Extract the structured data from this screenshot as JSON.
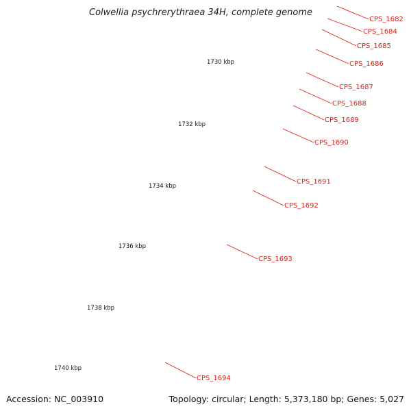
{
  "title": "Colwellia psychrerythraea 34H, complete genome",
  "accession": "Accession: NC_003910",
  "summary": "Topology: circular; Length: 5,373,180 bp; Genes: 5,027",
  "colors": {
    "backbone": "#7f7f7f",
    "gene_forward": "#ff1a1a",
    "gene_other": "#6e6e6e",
    "gene_cyan": "#22cccc",
    "label": "#e0201a",
    "tick": "#1a8a1a"
  },
  "scale_labels": [
    "1730 kbp",
    "1732 kbp",
    "1734 kbp",
    "1736 kbp",
    "1738 kbp",
    "1740 kbp"
  ],
  "genes": [
    {
      "label": "CPS_1682",
      "color": "#ff1a1a"
    },
    {
      "label": "CPS_1684",
      "color": "#ff1a1a"
    },
    {
      "label": "CPS_1685",
      "color": "#ff1a1a"
    },
    {
      "label": "CPS_1686",
      "color": "#ff1a1a"
    },
    {
      "label": "CPS_1687",
      "color": "#ff1a1a"
    },
    {
      "label": "CPS_1688",
      "color": "#ff1a1a"
    },
    {
      "label": "CPS_1689",
      "color": "#6e6e6e"
    },
    {
      "label": "CPS_1690",
      "color": "#ff1a1a"
    },
    {
      "label": "CPS_1691",
      "color": "#ff1a1a"
    },
    {
      "label": "CPS_1692",
      "color": "#ff1a1a"
    },
    {
      "label": "CPS_1693",
      "color": "#ff1a1a"
    },
    {
      "label": "CPS_1694",
      "color": "#22cccc"
    }
  ]
}
